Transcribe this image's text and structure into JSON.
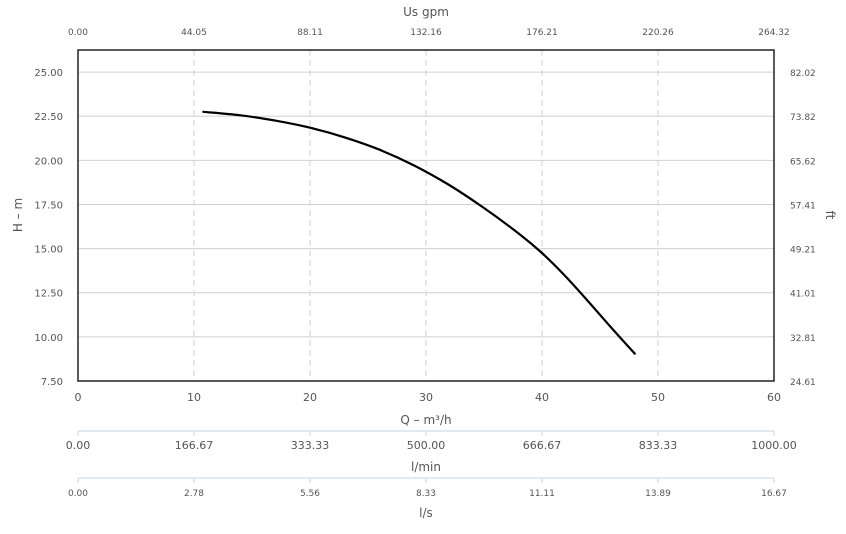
{
  "chart_data": {
    "type": "line",
    "title": "",
    "grid": true,
    "x": [
      10.8,
      14,
      17,
      20,
      23,
      26,
      29,
      32,
      35,
      38,
      40,
      42,
      44,
      46,
      48
    ],
    "series": [
      {
        "name": "",
        "values": [
          22.75,
          22.55,
          22.25,
          21.85,
          21.3,
          20.6,
          19.7,
          18.6,
          17.3,
          15.85,
          14.75,
          13.45,
          12.0,
          10.5,
          9.05
        ]
      }
    ],
    "line_color": "#000000",
    "grid_color": "#d0d0d0",
    "axis_color": "#c9d6e3",
    "x_bottom": {
      "label": "Q – m³/h",
      "range": [
        0,
        60
      ],
      "ticks": [
        "0",
        "10",
        "20",
        "30",
        "40",
        "50",
        "60"
      ]
    },
    "x_top": {
      "label": "Us gpm",
      "ticks": [
        "0.00",
        "44.05",
        "88.11",
        "132.16",
        "176.21",
        "220.26",
        "264.32"
      ]
    },
    "y_left": {
      "label": "H – m",
      "range": [
        7.5,
        26.25
      ],
      "ticks": [
        "7.50",
        "10.00",
        "12.50",
        "15.00",
        "17.50",
        "20.00",
        "22.50",
        "25.00"
      ]
    },
    "y_right": {
      "label": "ft",
      "ticks": [
        "24.61",
        "32.81",
        "41.01",
        "49.21",
        "57.41",
        "65.62",
        "73.82",
        "82.02"
      ]
    },
    "lmin_axis": {
      "label": "l/min",
      "ticks": [
        "0.00",
        "166.67",
        "333.33",
        "500.00",
        "666.67",
        "833.33",
        "1000.00"
      ]
    },
    "ls_axis": {
      "label": "l/s",
      "ticks": [
        "0.00",
        "2.78",
        "5.56",
        "8.33",
        "11.11",
        "13.89",
        "16.67"
      ]
    }
  }
}
